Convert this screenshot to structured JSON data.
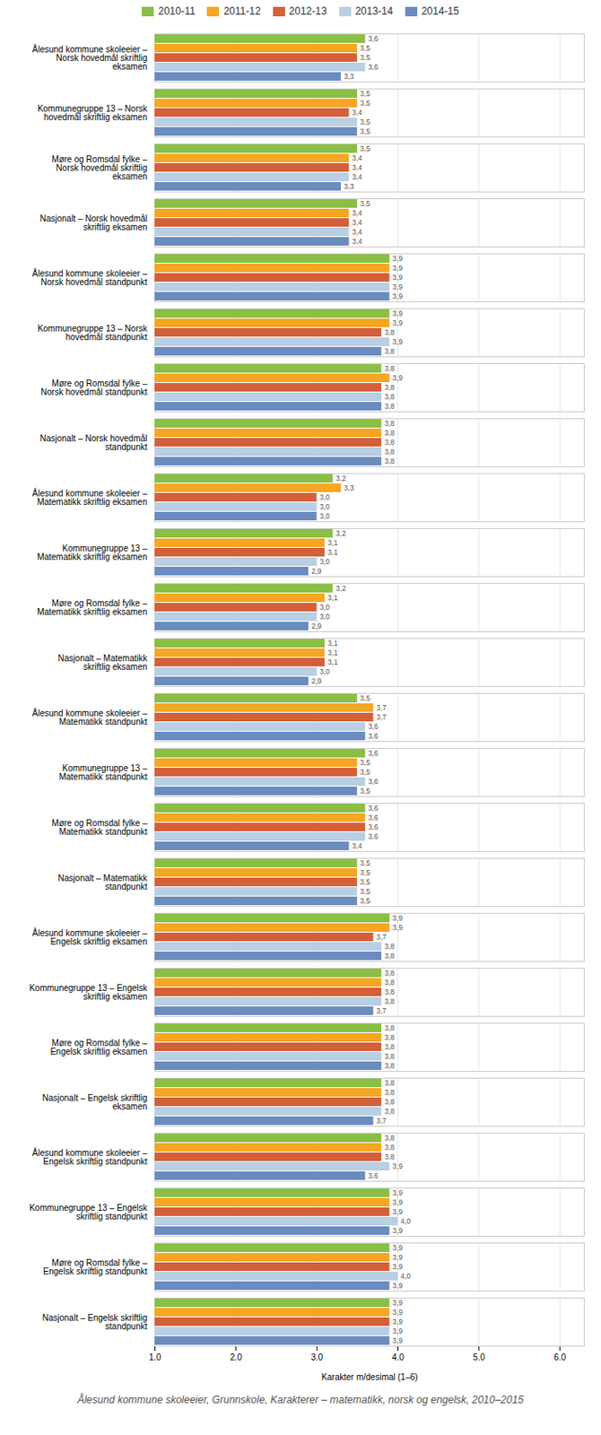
{
  "chart_data": {
    "type": "bar",
    "orientation": "horizontal",
    "title": "Ålesund kommune skoleeier, Grunnskole, Karakterer – matematikk, norsk og engelsk, 2010–2015",
    "xlabel": "Karakter m/desimal (1–6)",
    "xlim": [
      1,
      6.3
    ],
    "xticks": [
      1,
      2,
      3,
      4,
      5,
      6
    ],
    "grid": true,
    "legend": "top",
    "data_labels": true,
    "categories": [
      "Ålesund kommune skoleeier –\nNorsk hovedmål skriftlig\neksamen",
      "Kommunegruppe 13 – Norsk\nhovedmål skriftlig eksamen",
      "Møre og Romsdal fylke –\nNorsk hovedmål skriftlig\neksamen",
      "Nasjonalt – Norsk hovedmål\nskriftlig eksamen",
      "Ålesund kommune skoleeier –\nNorsk hovedmål standpunkt",
      "Kommunegruppe 13 – Norsk\nhovedmål standpunkt",
      "Møre og Romsdal fylke –\nNorsk hovedmål standpunkt",
      "Nasjonalt – Norsk hovedmål\nstandpunkt",
      "Ålesund kommune skoleeier –\nMatematikk skriftlig eksamen",
      "Kommunegruppe 13 –\nMatematikk skriftlig eksamen",
      "Møre og Romsdal fylke –\nMatematikk skriftlig eksamen",
      "Nasjonalt – Matematikk\nskriftlig eksamen",
      "Ålesund kommune skoleeier –\nMatematikk standpunkt",
      "Kommunegruppe 13 –\nMatematikk standpunkt",
      "Møre og Romsdal fylke –\nMatematikk standpunkt",
      "Nasjonalt – Matematikk\nstandpunkt",
      "Ålesund kommune skoleeier –\nEngelsk skriftlig eksamen",
      "Kommunegruppe 13 – Engelsk\nskriftlig eksamen",
      "Møre og Romsdal fylke –\nEngelsk skriftlig eksamen",
      "Nasjonalt – Engelsk skriftlig\neksamen",
      "Ålesund kommune skoleeier –\nEngelsk skriftlig standpunkt",
      "Kommunegruppe 13 – Engelsk\nskriftlig standpunkt",
      "Møre og Romsdal fylke –\nEngelsk skriftlig standpunkt",
      "Nasjonalt – Engelsk skriftlig\nstandpunkt"
    ],
    "series": [
      {
        "name": "2010-11",
        "color": "#8abf45",
        "values": [
          3.6,
          3.5,
          3.5,
          3.5,
          3.9,
          3.9,
          3.8,
          3.8,
          3.2,
          3.2,
          3.2,
          3.1,
          3.5,
          3.6,
          3.6,
          3.5,
          3.9,
          3.8,
          3.8,
          3.8,
          3.8,
          3.9,
          3.9,
          3.9
        ],
        "value_labels": [
          "3,6",
          "3,5",
          "3,5",
          "3,5",
          "3,9",
          "3,9",
          "3,8",
          "3,8",
          "3,2",
          "3,2",
          "3,2",
          "3,1",
          "3,5",
          "3,6",
          "3,6",
          "3,5",
          "3,9",
          "3,8",
          "3,8",
          "3,8",
          "3,8",
          "3,9",
          "3,9",
          "3,9"
        ]
      },
      {
        "name": "2011-12",
        "color": "#f5a623",
        "values": [
          3.5,
          3.5,
          3.4,
          3.4,
          3.9,
          3.9,
          3.9,
          3.8,
          3.3,
          3.1,
          3.1,
          3.1,
          3.7,
          3.5,
          3.6,
          3.5,
          3.9,
          3.8,
          3.8,
          3.8,
          3.8,
          3.9,
          3.9,
          3.9
        ],
        "value_labels": [
          "3,5",
          "3,5",
          "3,4",
          "3,4",
          "3,9",
          "3,9",
          "3,9",
          "3,8",
          "3,3",
          "3,1",
          "3,1",
          "3,1",
          "3,7",
          "3,5",
          "3,6",
          "3,5",
          "3,9",
          "3,8",
          "3,8",
          "3,8",
          "3,8",
          "3,9",
          "3,9",
          "3,9"
        ]
      },
      {
        "name": "2012-13",
        "color": "#d4603a",
        "values": [
          3.5,
          3.4,
          3.4,
          3.4,
          3.9,
          3.8,
          3.8,
          3.8,
          3.0,
          3.1,
          3.0,
          3.1,
          3.7,
          3.5,
          3.6,
          3.5,
          3.7,
          3.8,
          3.8,
          3.8,
          3.8,
          3.9,
          3.9,
          3.9
        ],
        "value_labels": [
          "3,5",
          "3,4",
          "3,4",
          "3,4",
          "3,9",
          "3,8",
          "3,8",
          "3,8",
          "3,0",
          "3,1",
          "3,0",
          "3,1",
          "3,7",
          "3,5",
          "3,6",
          "3,5",
          "3,7",
          "3,8",
          "3,8",
          "3,8",
          "3,8",
          "3,9",
          "3,9",
          "3,9"
        ]
      },
      {
        "name": "2013-14",
        "color": "#b8cfe4",
        "values": [
          3.6,
          3.5,
          3.4,
          3.4,
          3.9,
          3.9,
          3.8,
          3.8,
          3.0,
          3.0,
          3.0,
          3.0,
          3.6,
          3.6,
          3.6,
          3.5,
          3.8,
          3.8,
          3.8,
          3.8,
          3.9,
          4.0,
          4.0,
          3.9
        ],
        "value_labels": [
          "3,6",
          "3,5",
          "3,4",
          "3,4",
          "3,9",
          "3,9",
          "3,8",
          "3,8",
          "3,0",
          "3,0",
          "3,0",
          "3,0",
          "3,6",
          "3,6",
          "3,6",
          "3,5",
          "3,8",
          "3,8",
          "3,8",
          "3,8",
          "3,9",
          "4,0",
          "4,0",
          "3,9"
        ]
      },
      {
        "name": "2014-15",
        "color": "#6b8cbf",
        "values": [
          3.3,
          3.5,
          3.3,
          3.4,
          3.9,
          3.8,
          3.8,
          3.8,
          3.0,
          2.9,
          2.9,
          2.9,
          3.6,
          3.5,
          3.4,
          3.5,
          3.8,
          3.7,
          3.8,
          3.7,
          3.6,
          3.9,
          3.9,
          3.9
        ],
        "value_labels": [
          "3,3",
          "3,5",
          "3,3",
          "3,4",
          "3,9",
          "3,8",
          "3,8",
          "3,8",
          "3,0",
          "2,9",
          "2,9",
          "2,9",
          "3,6",
          "3,5",
          "3,4",
          "3,5",
          "3,8",
          "3,7",
          "3,8",
          "3,7",
          "3,6",
          "3,9",
          "3,9",
          "3,9"
        ]
      }
    ]
  }
}
